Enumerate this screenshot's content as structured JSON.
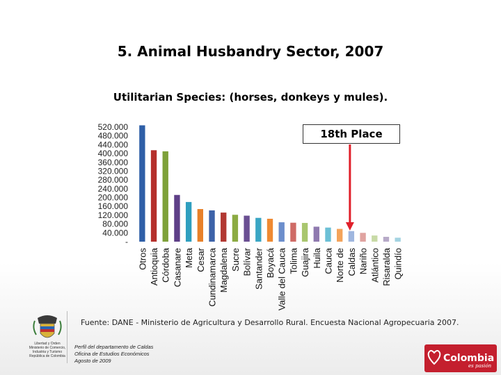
{
  "slide": {
    "title": "5. Animal Husbandry Sector, 2007",
    "source": "Fuente: DANE - Ministerio de Agricultura y Desarrollo Rural. Encuesta Nacional Agropecuaria 2007.",
    "footer_lines": [
      "Perfil del departamento de Caldas",
      "Oficina de Estudios Económicos",
      "Agosto de 2009"
    ],
    "emblem_lines": [
      "Libertad y Orden",
      "Ministerio de Comercio,",
      "Industria y Turismo",
      "República de Colombia"
    ],
    "brand_logo": "Colombia",
    "brand_tagline": "es pasión"
  },
  "callout": {
    "text": "18th Place",
    "target": "Caldas",
    "arrow_color": "#e0202a"
  },
  "chart_data": {
    "type": "bar",
    "title": "Utilitarian Species: (horses, donkeys y mules).",
    "xlabel": "",
    "ylabel": "",
    "ylim": [
      0,
      520000
    ],
    "yticks": [
      0,
      40000,
      80000,
      120000,
      160000,
      200000,
      240000,
      280000,
      320000,
      360000,
      400000,
      440000,
      480000,
      520000
    ],
    "ytick_labels": [
      "-",
      "40.000",
      "80.000",
      "120.000",
      "160.000",
      "200.000",
      "240.000",
      "280.000",
      "320.000",
      "360.000",
      "400.000",
      "440.000",
      "480.000",
      "520.000"
    ],
    "grid": false,
    "legend": "none",
    "categories": [
      "Otros",
      "Antioquia",
      "Córdoba",
      "Casanare",
      "Meta",
      "Cesar",
      "Cundinamarca",
      "Magdalena",
      "Sucre",
      "Bolívar",
      "Santander",
      "Boyacá",
      "Valle del Cauca",
      "Tolima",
      "Guajira",
      "Huila",
      "Cauca",
      "Norte de Santander",
      "Caldas",
      "Nariño",
      "Atlántico",
      "Risaralda",
      "Quindío"
    ],
    "category_labels": [
      "Otros",
      "Antioquia",
      "Córdoba",
      "Casanare",
      "Meta",
      "Cesar",
      "Cundinamarca",
      "Magdalena",
      "Sucre",
      "Bolívar",
      "Santander",
      "Boyacá",
      "Valle del Cauca",
      "Tolima",
      "Guajira",
      "Huila",
      "Cauca",
      "Norte de",
      "Caldas",
      "Nariño",
      "Atlántico",
      "Risaralda",
      "Quindío"
    ],
    "values": [
      528000,
      415000,
      410000,
      212000,
      180000,
      148000,
      142000,
      132000,
      122000,
      118000,
      108000,
      104000,
      88000,
      86000,
      85000,
      68000,
      64000,
      58000,
      48000,
      40000,
      28000,
      22000,
      18000
    ],
    "colors": [
      "#2f5fa7",
      "#b5302c",
      "#7ea13a",
      "#5e3f87",
      "#2f9fbf",
      "#e8812a",
      "#3d62a8",
      "#b23832",
      "#8cab43",
      "#6a4f92",
      "#3aa6c4",
      "#ef8a33",
      "#6c8ecc",
      "#cf6b66",
      "#a9c66f",
      "#8f7aaf",
      "#6cc0d6",
      "#f4a45b",
      "#9fb6df",
      "#e0a3a0",
      "#c8daa6",
      "#b7aac8",
      "#a3d3e1"
    ]
  }
}
